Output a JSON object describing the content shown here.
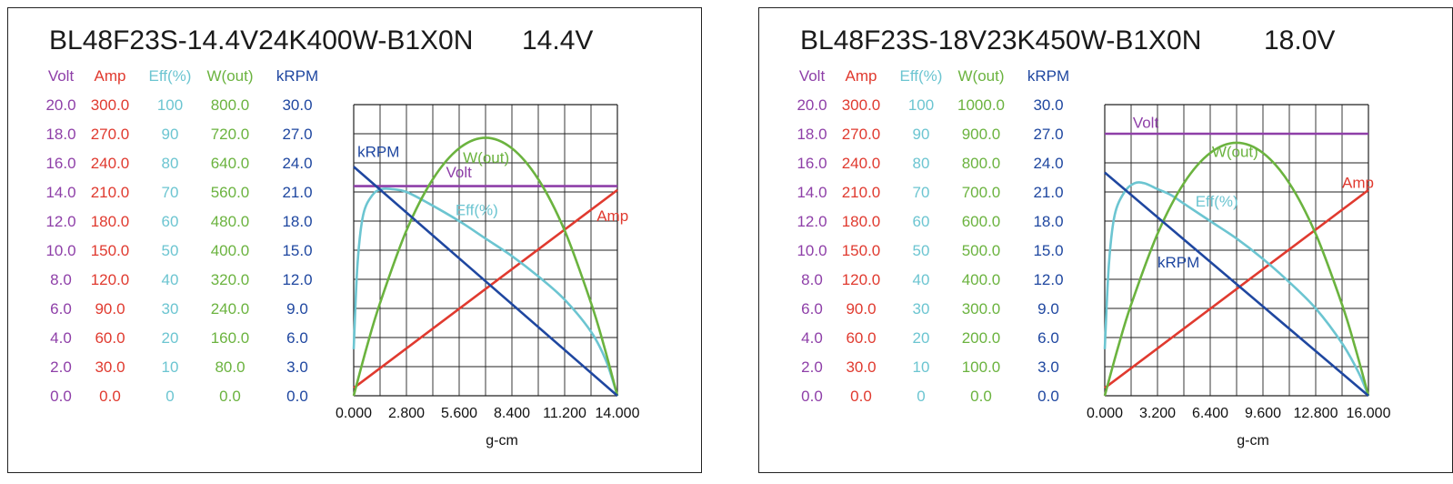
{
  "series_colors": {
    "Volt": "#8e3fa8",
    "Amp": "#e03a2f",
    "Eff(%)": "#6cc5d1",
    "W(out)": "#6bb33f",
    "kRPM": "#1f47a0"
  },
  "chart_data": [
    {
      "type": "line",
      "title": "BL48F23S-14.4V24K400W-B1X0N",
      "voltage_label": "14.4V",
      "xlabel": "g-cm",
      "xlim": [
        0,
        14
      ],
      "x_ticks": [
        "0.000",
        "2.800",
        "5.600",
        "8.400",
        "11.200",
        "14.000"
      ],
      "grid": true,
      "axes": [
        {
          "name": "Volt",
          "ylim": [
            0,
            20
          ],
          "ticks": [
            "0.0",
            "2.0",
            "4.0",
            "6.0",
            "8.0",
            "10.0",
            "12.0",
            "14.0",
            "16.0",
            "18.0",
            "20.0"
          ]
        },
        {
          "name": "Amp",
          "ylim": [
            0,
            300
          ],
          "ticks": [
            "0.0",
            "30.0",
            "60.0",
            "90.0",
            "120.0",
            "150.0",
            "180.0",
            "210.0",
            "240.0",
            "270.0",
            "300.0"
          ]
        },
        {
          "name": "Eff(%)",
          "ylim": [
            0,
            100
          ],
          "ticks": [
            "0",
            "10",
            "20",
            "30",
            "40",
            "50",
            "60",
            "70",
            "80",
            "90",
            "100"
          ]
        },
        {
          "name": "W(out)",
          "ylim": [
            0,
            800
          ],
          "ticks": [
            "0.0",
            "80.0",
            "160.0",
            "240.0",
            "320.0",
            "400.0",
            "480.0",
            "560.0",
            "640.0",
            "720.0",
            "800.0"
          ]
        },
        {
          "name": "kRPM",
          "ylim": [
            0,
            30
          ],
          "ticks": [
            "0.0",
            "3.0",
            "6.0",
            "9.0",
            "12.0",
            "15.0",
            "18.0",
            "21.0",
            "24.0",
            "27.0",
            "30.0"
          ]
        }
      ],
      "series": [
        {
          "name": "Volt",
          "axis": "Volt",
          "x": [
            0,
            14
          ],
          "y": [
            14.4,
            14.4
          ]
        },
        {
          "name": "Amp",
          "axis": "Amp",
          "x": [
            0,
            14
          ],
          "y": [
            8,
            212
          ]
        },
        {
          "name": "Eff(%)",
          "axis": "Eff(%)",
          "x": [
            0,
            0.2,
            0.5,
            1.0,
            1.5,
            2.0,
            2.8,
            4.0,
            5.6,
            7.0,
            8.4,
            9.8,
            11.2,
            12.6,
            13.4,
            14.0
          ],
          "y": [
            16,
            45,
            62,
            69,
            71,
            71,
            70,
            66,
            60,
            54,
            48,
            41,
            33,
            22,
            12,
            0
          ]
        },
        {
          "name": "W(out)",
          "axis": "W(out)",
          "x": [
            0,
            0.7,
            1.4,
            2.8,
            4.2,
            5.6,
            7.0,
            8.4,
            9.8,
            11.2,
            12.6,
            13.3,
            14.0
          ],
          "y": [
            0,
            135,
            255,
            454,
            595,
            680,
            709,
            680,
            595,
            454,
            255,
            135,
            0
          ]
        },
        {
          "name": "kRPM",
          "axis": "kRPM",
          "x": [
            0,
            14
          ],
          "y": [
            23.6,
            0
          ]
        }
      ],
      "labels": [
        {
          "series": "kRPM",
          "text": "kRPM",
          "x": 0.2,
          "yaxis": "kRPM",
          "y": 24.6
        },
        {
          "series": "W(out)",
          "text": "W(out)",
          "x": 5.8,
          "yaxis": "W(out)",
          "y": 640
        },
        {
          "series": "Volt",
          "text": "Volt",
          "x": 4.9,
          "yaxis": "Volt",
          "y": 15.0
        },
        {
          "series": "Eff(%)",
          "text": "Eff(%)",
          "x": 5.4,
          "yaxis": "Eff(%)",
          "y": 62
        },
        {
          "series": "Amp",
          "text": "Amp",
          "x": 12.9,
          "yaxis": "Amp",
          "y": 180
        }
      ]
    },
    {
      "type": "line",
      "title": "BL48F23S-18V23K450W-B1X0N",
      "voltage_label": "18.0V",
      "xlabel": "g-cm",
      "xlim": [
        0,
        16
      ],
      "x_ticks": [
        "0.000",
        "3.200",
        "6.400",
        "9.600",
        "12.800",
        "16.000"
      ],
      "grid": true,
      "axes": [
        {
          "name": "Volt",
          "ylim": [
            0,
            20
          ],
          "ticks": [
            "0.0",
            "2.0",
            "4.0",
            "6.0",
            "8.0",
            "10.0",
            "12.0",
            "14.0",
            "16.0",
            "18.0",
            "20.0"
          ]
        },
        {
          "name": "Amp",
          "ylim": [
            0,
            300
          ],
          "ticks": [
            "0.0",
            "30.0",
            "60.0",
            "90.0",
            "120.0",
            "150.0",
            "180.0",
            "210.0",
            "240.0",
            "270.0",
            "300.0"
          ]
        },
        {
          "name": "Eff(%)",
          "ylim": [
            0,
            100
          ],
          "ticks": [
            "0",
            "10",
            "20",
            "30",
            "40",
            "50",
            "60",
            "70",
            "80",
            "90",
            "100"
          ]
        },
        {
          "name": "W(out)",
          "ylim": [
            0,
            1000
          ],
          "ticks": [
            "0.0",
            "100.0",
            "200.0",
            "300.0",
            "400.0",
            "500.0",
            "600.0",
            "700.0",
            "800.0",
            "900.0",
            "1000.0"
          ]
        },
        {
          "name": "kRPM",
          "ylim": [
            0,
            30
          ],
          "ticks": [
            "0.0",
            "3.0",
            "6.0",
            "9.0",
            "12.0",
            "15.0",
            "18.0",
            "21.0",
            "24.0",
            "27.0",
            "30.0"
          ]
        }
      ],
      "series": [
        {
          "name": "Volt",
          "axis": "Volt",
          "x": [
            0,
            16
          ],
          "y": [
            18.0,
            18.0
          ]
        },
        {
          "name": "Amp",
          "axis": "Amp",
          "x": [
            0,
            16
          ],
          "y": [
            8,
            212
          ]
        },
        {
          "name": "Eff(%)",
          "axis": "Eff(%)",
          "x": [
            0,
            0.25,
            0.6,
            1.2,
            1.8,
            2.4,
            3.2,
            4.0,
            4.8,
            6.4,
            8.0,
            9.6,
            11.2,
            12.8,
            14.4,
            15.4,
            16.0
          ],
          "y": [
            16,
            45,
            62,
            70,
            73,
            73,
            71,
            69,
            66,
            60,
            54,
            47,
            39,
            30,
            18,
            8,
            0
          ]
        },
        {
          "name": "W(out)",
          "axis": "W(out)",
          "x": [
            0,
            0.8,
            1.6,
            3.2,
            4.8,
            6.4,
            8.0,
            9.6,
            11.2,
            12.8,
            14.4,
            15.2,
            16.0
          ],
          "y": [
            0,
            165,
            313,
            556,
            730,
            834,
            869,
            834,
            730,
            556,
            313,
            165,
            0
          ]
        },
        {
          "name": "kRPM",
          "axis": "kRPM",
          "x": [
            0,
            16
          ],
          "y": [
            23.0,
            0
          ]
        }
      ],
      "labels": [
        {
          "series": "Volt",
          "text": "Volt",
          "x": 1.7,
          "yaxis": "Volt",
          "y": 18.4
        },
        {
          "series": "W(out)",
          "text": "W(out)",
          "x": 6.5,
          "yaxis": "W(out)",
          "y": 820
        },
        {
          "series": "Eff(%)",
          "text": "Eff(%)",
          "x": 5.5,
          "yaxis": "Eff(%)",
          "y": 65
        },
        {
          "series": "Amp",
          "text": "Amp",
          "x": 14.4,
          "yaxis": "Amp",
          "y": 214
        },
        {
          "series": "kRPM",
          "text": "kRPM",
          "x": 3.2,
          "yaxis": "kRPM",
          "y": 13.2
        }
      ]
    }
  ]
}
